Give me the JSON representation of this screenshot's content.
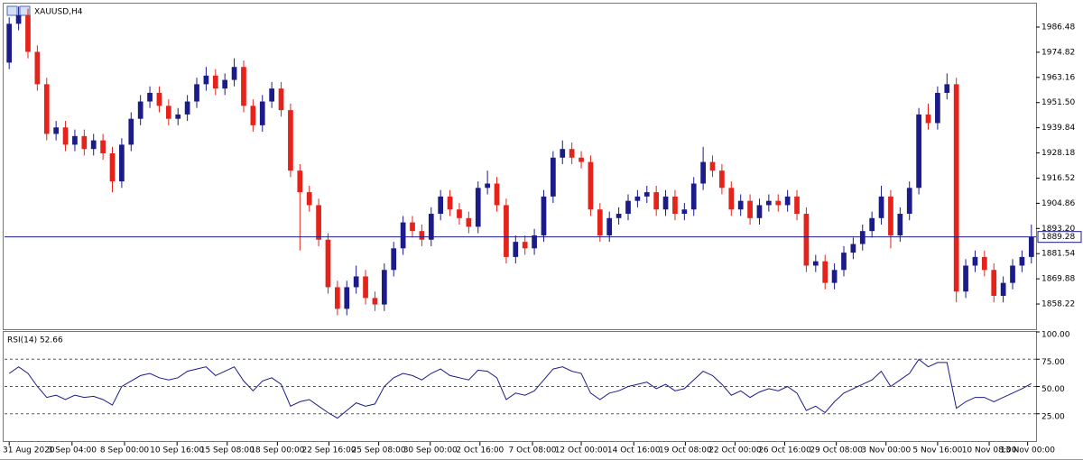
{
  "chart_data": [
    {
      "type": "candlestick",
      "title": "XAUUSD,H4",
      "up_color": "#1b1b8a",
      "down_color": "#e5231b",
      "xlim": [
        -0.5,
        109.5
      ],
      "ylim": [
        1846.96,
        1996.92
      ],
      "yticks": [
        1986.48,
        {
          "value": 1974.82,
          "label": "1974.82"
        },
        1963.16,
        {
          "value": 1951.5,
          "label": "1951.50"
        },
        1939.84,
        1928.18,
        1916.52,
        1904.86,
        {
          "value": 1893.2,
          "label": "1893.20"
        },
        1881.54,
        1869.88,
        1858.22
      ],
      "price_line": {
        "value": 1889.28,
        "color": "#1b1b8a"
      },
      "open": [
        1970,
        1988,
        1992,
        1975,
        1960,
        1937,
        1940,
        1932,
        1936,
        1930,
        1934,
        1928,
        1915,
        1932,
        1944,
        1952,
        1956,
        1950,
        1944,
        1946,
        1952,
        1960,
        1964,
        1958,
        1962,
        1968,
        1950,
        1941,
        1952,
        1958,
        1948,
        1920,
        1910,
        1904,
        1888,
        1866,
        1856,
        1866,
        1871,
        1861,
        1858,
        1874,
        1884,
        1896,
        1892,
        1888,
        1900,
        1908,
        1902,
        1898,
        1894,
        1912,
        1914,
        1904,
        1880,
        1887,
        1884,
        1890,
        1908,
        1926,
        1930,
        1926,
        1924,
        1902,
        1890,
        1898,
        1900,
        1906,
        1908,
        1910,
        1902,
        1908,
        1900,
        1902,
        1914,
        1924,
        1920,
        1912,
        1902,
        1906,
        1898,
        1904,
        1906,
        1904,
        1908,
        1900,
        1876,
        1878,
        1868,
        1874,
        1882,
        1886,
        1892,
        1898,
        1908,
        1890,
        1900,
        1912,
        1946,
        1942,
        1956,
        1960,
        1864,
        1876,
        1880,
        1874,
        1862,
        1868,
        1876,
        1880
      ],
      "high": [
        1991,
        1996,
        1995,
        1978,
        1963,
        1943,
        1943,
        1939,
        1939,
        1937,
        1937,
        1931,
        1935,
        1947,
        1955,
        1959,
        1959,
        1953,
        1949,
        1955,
        1963,
        1968,
        1967,
        1965,
        1972,
        1971,
        1953,
        1955,
        1961,
        1961,
        1951,
        1923,
        1913,
        1907,
        1891,
        1869,
        1869,
        1876,
        1874,
        1864,
        1877,
        1887,
        1899,
        1899,
        1895,
        1903,
        1911,
        1911,
        1905,
        1901,
        1915,
        1920,
        1917,
        1907,
        1890,
        1890,
        1893,
        1911,
        1929,
        1934,
        1933,
        1929,
        1927,
        1905,
        1901,
        1903,
        1909,
        1911,
        1913,
        1913,
        1911,
        1911,
        1905,
        1917,
        1931,
        1927,
        1923,
        1915,
        1909,
        1909,
        1907,
        1909,
        1909,
        1911,
        1911,
        1903,
        1881,
        1881,
        1877,
        1885,
        1889,
        1895,
        1901,
        1913,
        1911,
        1903,
        1915,
        1949,
        1951,
        1959,
        1965,
        1963,
        1879,
        1883,
        1883,
        1877,
        1871,
        1879,
        1883,
        1895
      ],
      "low": [
        1967,
        1985,
        1972,
        1957,
        1934,
        1934,
        1929,
        1929,
        1927,
        1927,
        1925,
        1910,
        1912,
        1929,
        1941,
        1949,
        1947,
        1941,
        1941,
        1943,
        1949,
        1957,
        1955,
        1955,
        1959,
        1947,
        1938,
        1938,
        1949,
        1945,
        1917,
        1883,
        1901,
        1885,
        1863,
        1853,
        1853,
        1863,
        1858,
        1855,
        1855,
        1871,
        1881,
        1889,
        1885,
        1885,
        1897,
        1899,
        1895,
        1891,
        1891,
        1909,
        1901,
        1877,
        1877,
        1881,
        1881,
        1887,
        1905,
        1923,
        1923,
        1921,
        1899,
        1887,
        1887,
        1895,
        1897,
        1903,
        1905,
        1899,
        1899,
        1897,
        1897,
        1899,
        1911,
        1917,
        1909,
        1899,
        1899,
        1895,
        1895,
        1901,
        1901,
        1901,
        1897,
        1873,
        1873,
        1865,
        1865,
        1871,
        1879,
        1883,
        1889,
        1895,
        1884,
        1887,
        1897,
        1909,
        1939,
        1939,
        1953,
        1859,
        1861,
        1873,
        1871,
        1859,
        1859,
        1865,
        1873,
        1877
      ],
      "close": [
        1988,
        1992,
        1975,
        1960,
        1937,
        1940,
        1932,
        1936,
        1930,
        1934,
        1928,
        1915,
        1932,
        1944,
        1952,
        1956,
        1950,
        1944,
        1946,
        1952,
        1960,
        1964,
        1958,
        1962,
        1968,
        1950,
        1941,
        1952,
        1958,
        1948,
        1920,
        1910,
        1904,
        1888,
        1866,
        1856,
        1866,
        1871,
        1861,
        1858,
        1874,
        1884,
        1896,
        1892,
        1888,
        1900,
        1908,
        1902,
        1898,
        1894,
        1912,
        1914,
        1904,
        1880,
        1887,
        1884,
        1890,
        1908,
        1926,
        1930,
        1926,
        1924,
        1902,
        1890,
        1898,
        1900,
        1906,
        1908,
        1910,
        1902,
        1908,
        1900,
        1902,
        1914,
        1924,
        1920,
        1912,
        1902,
        1906,
        1898,
        1904,
        1906,
        1904,
        1908,
        1900,
        1876,
        1878,
        1868,
        1874,
        1882,
        1886,
        1892,
        1898,
        1908,
        1890,
        1900,
        1912,
        1946,
        1942,
        1956,
        1960,
        1864,
        1876,
        1880,
        1874,
        1862,
        1868,
        1876,
        1880,
        1889.28
      ]
    },
    {
      "type": "line",
      "title": "RSI(14) 52.66",
      "color": "#1b1b8a",
      "xlim": [
        -0.5,
        109.5
      ],
      "ylim": [
        0,
        100
      ],
      "yticks": [
        {
          "value": 100,
          "label": "100.00"
        },
        {
          "value": 75,
          "label": "75.00"
        },
        {
          "value": 50,
          "label": "50.00"
        },
        {
          "value": 25,
          "label": "25.00"
        }
      ],
      "values": [
        62,
        68,
        62,
        50,
        40,
        42,
        38,
        42,
        40,
        41,
        38,
        33,
        50,
        55,
        60,
        62,
        58,
        56,
        58,
        64,
        66,
        68,
        60,
        64,
        68,
        55,
        46,
        55,
        58,
        52,
        32,
        36,
        38,
        32,
        26,
        21,
        28,
        35,
        32,
        34,
        50,
        58,
        62,
        60,
        56,
        62,
        66,
        60,
        58,
        56,
        65,
        64,
        58,
        38,
        44,
        42,
        46,
        56,
        66,
        68,
        64,
        62,
        44,
        38,
        44,
        46,
        50,
        52,
        54,
        48,
        52,
        46,
        48,
        56,
        64,
        60,
        52,
        42,
        46,
        40,
        45,
        48,
        46,
        50,
        44,
        28,
        32,
        26,
        36,
        44,
        48,
        52,
        56,
        64,
        50,
        56,
        62,
        75,
        68,
        72,
        72,
        30,
        36,
        40,
        40,
        36,
        40,
        44,
        48,
        52.66
      ],
      "xticks": [
        {
          "value": 0,
          "label": "31 Aug 2020"
        },
        {
          "value": 6.7,
          "label": "3 Sep 04:00"
        },
        {
          "value": 12.3,
          "label": "8 Sep 00:00"
        },
        {
          "value": 17.9,
          "label": "10 Sep 16:00"
        },
        {
          "value": 23.25,
          "label": "15 Sep 08:00"
        },
        {
          "value": 28.6,
          "label": "18 Sep 00:00"
        },
        {
          "value": 34.1,
          "label": "22 Sep 16:00"
        },
        {
          "value": 39.4,
          "label": "25 Sep 08:00"
        },
        {
          "value": 44.9,
          "label": "30 Sep 00:00"
        },
        {
          "value": 50.2,
          "label": "2 Oct 16:00"
        },
        {
          "value": 55.8,
          "label": "7 Oct 08:00"
        },
        {
          "value": 61,
          "label": "12 Oct 00:00"
        },
        {
          "value": 66.6,
          "label": "14 Oct 16:00"
        },
        {
          "value": 72.1,
          "label": "19 Oct 08:00"
        },
        {
          "value": 77.4,
          "label": "22 Oct 00:00"
        },
        {
          "value": 82.7,
          "label": "26 Oct 16:00"
        },
        {
          "value": 88.2,
          "label": "29 Oct 08:00"
        },
        {
          "value": 93.5,
          "label": "3 Nov 00:00"
        },
        {
          "value": 99,
          "label": "5 Nov 16:00"
        },
        {
          "value": 104.5,
          "label": "10 Nov 08:00"
        },
        {
          "value": 108.6,
          "label": "13 Nov 00:00"
        }
      ]
    }
  ]
}
